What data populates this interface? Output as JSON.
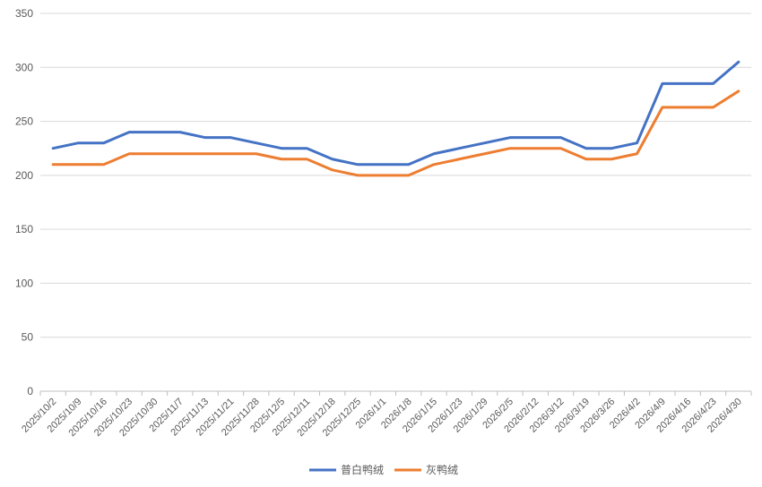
{
  "chart_data": {
    "type": "line",
    "title": "",
    "xlabel": "",
    "ylabel": "",
    "ylim": [
      0,
      350
    ],
    "yticks": [
      0,
      50,
      100,
      150,
      200,
      250,
      300,
      350
    ],
    "grid": true,
    "legend_position": "bottom",
    "categories": [
      "2025/10/2",
      "2025/10/9",
      "2025/10/16",
      "2025/10/23",
      "2025/10/30",
      "2025/11/7",
      "2025/11/13",
      "2025/11/21",
      "2025/11/28",
      "2025/12/5",
      "2025/12/11",
      "2025/12/18",
      "2025/12/25",
      "2026/1/1",
      "2026/1/8",
      "2026/1/15",
      "2026/1/23",
      "2026/1/29",
      "2026/2/5",
      "2026/2/12",
      "2026/3/12",
      "2026/3/19",
      "2026/3/26",
      "2026/4/2",
      "2026/4/9",
      "2026/4/16",
      "2026/4/23",
      "2026/4/30"
    ],
    "series": [
      {
        "name": "普白鸭绒",
        "color": "#4472C4",
        "values": [
          225,
          230,
          230,
          240,
          240,
          240,
          235,
          235,
          230,
          225,
          225,
          215,
          210,
          210,
          210,
          220,
          225,
          230,
          235,
          235,
          235,
          225,
          225,
          230,
          285,
          285,
          285,
          305
        ]
      },
      {
        "name": "灰鸭绒",
        "color": "#ED7D31",
        "values": [
          210,
          210,
          210,
          220,
          220,
          220,
          220,
          220,
          220,
          215,
          215,
          205,
          200,
          200,
          200,
          210,
          215,
          220,
          225,
          225,
          225,
          215,
          215,
          220,
          263,
          263,
          263,
          278
        ]
      }
    ]
  }
}
